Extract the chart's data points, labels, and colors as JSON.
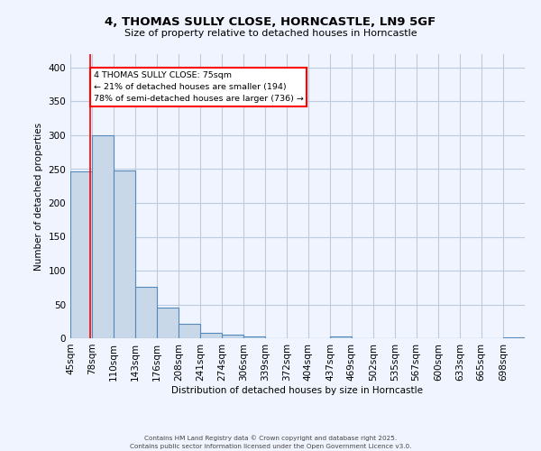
{
  "title_line1": "4, THOMAS SULLY CLOSE, HORNCASTLE, LN9 5GF",
  "title_line2": "Size of property relative to detached houses in Horncastle",
  "xlabel": "Distribution of detached houses by size in Horncastle",
  "ylabel": "Number of detached properties",
  "bin_labels": [
    "45sqm",
    "78sqm",
    "110sqm",
    "143sqm",
    "176sqm",
    "208sqm",
    "241sqm",
    "274sqm",
    "306sqm",
    "339sqm",
    "372sqm",
    "404sqm",
    "437sqm",
    "469sqm",
    "502sqm",
    "535sqm",
    "567sqm",
    "600sqm",
    "633sqm",
    "665sqm",
    "698sqm"
  ],
  "bar_heights": [
    247,
    300,
    248,
    76,
    45,
    22,
    8,
    5,
    3,
    0,
    0,
    0,
    3,
    0,
    0,
    0,
    0,
    0,
    0,
    0,
    2
  ],
  "bar_color": "#c8d8e8",
  "bar_edge_color": "#5588bb",
  "background_color": "#f0f4ff",
  "grid_color": "#bbccdd",
  "annotation_text": "4 THOMAS SULLY CLOSE: 75sqm\n← 21% of detached houses are smaller (194)\n78% of semi-detached houses are larger (736) →",
  "annotation_box_color": "white",
  "annotation_box_edge": "red",
  "property_line_x": 75,
  "ylim": [
    0,
    420
  ],
  "yticks": [
    0,
    50,
    100,
    150,
    200,
    250,
    300,
    350,
    400
  ],
  "footer_line1": "Contains HM Land Registry data © Crown copyright and database right 2025.",
  "footer_line2": "Contains public sector information licensed under the Open Government Licence v3.0.",
  "bin_width": 33
}
